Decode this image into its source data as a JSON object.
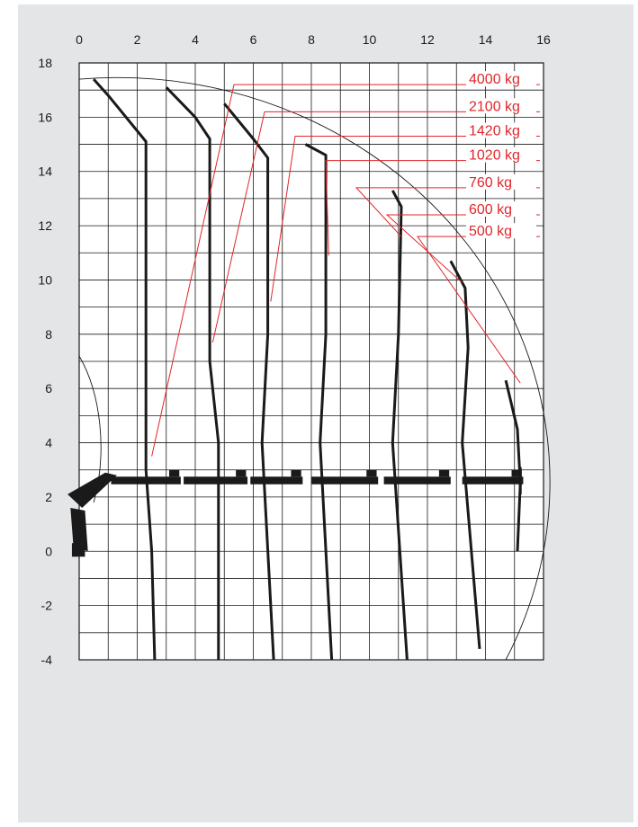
{
  "chart_data": {
    "type": "line",
    "title": "",
    "xlabel": "",
    "ylabel": "",
    "xlim": [
      0,
      16
    ],
    "ylim": [
      -4,
      18
    ],
    "grid": true,
    "x_ticks": [
      "0",
      "2",
      "4",
      "6",
      "8",
      "10",
      "12",
      "14",
      "16"
    ],
    "y_ticks": [
      "18",
      "16",
      "14",
      "12",
      "10",
      "8",
      "6",
      "4",
      "2",
      "0",
      "-2",
      "-4"
    ],
    "line_color": "#1a1a1a",
    "label_color": "#e0262b",
    "series": [
      {
        "name": "4000 kg",
        "points": [
          [
            0.5,
            17.4
          ],
          [
            1,
            16.8
          ],
          [
            2.3,
            15.1
          ],
          [
            2.3,
            3
          ],
          [
            2.5,
            0
          ],
          [
            2.6,
            -4
          ]
        ]
      },
      {
        "name": "2100 kg",
        "points": [
          [
            3,
            17.1
          ],
          [
            4,
            16
          ],
          [
            4.5,
            15.2
          ],
          [
            4.5,
            7
          ],
          [
            4.8,
            4
          ],
          [
            4.8,
            -4
          ]
        ]
      },
      {
        "name": "1420 kg",
        "points": [
          [
            5,
            16.5
          ],
          [
            6,
            15.2
          ],
          [
            6.5,
            14.5
          ],
          [
            6.5,
            8
          ],
          [
            6.3,
            4
          ],
          [
            6.7,
            -4
          ]
        ]
      },
      {
        "name": "1020 kg",
        "points": [
          [
            7.8,
            15
          ],
          [
            8.5,
            14.6
          ],
          [
            8.5,
            8
          ],
          [
            8.3,
            4
          ],
          [
            8.7,
            -4
          ]
        ]
      },
      {
        "name": "760 kg",
        "points": [
          [
            10.8,
            13.3
          ],
          [
            11.1,
            12.7
          ],
          [
            11.0,
            8
          ],
          [
            10.8,
            4
          ],
          [
            11.3,
            -4
          ]
        ]
      },
      {
        "name": "600 kg",
        "points": [
          [
            12.8,
            10.7
          ],
          [
            13.3,
            9.7
          ],
          [
            13.4,
            7.5
          ],
          [
            13.2,
            4
          ],
          [
            13.8,
            -3.6
          ]
        ]
      },
      {
        "name": "500 kg",
        "points": [
          [
            14.7,
            6.3
          ],
          [
            15.1,
            4.5
          ],
          [
            15.2,
            2.5
          ],
          [
            15.1,
            0
          ]
        ]
      }
    ],
    "labels": [
      {
        "text": "4000 kg",
        "y": 17.2,
        "target": [
          2.5,
          3.5
        ]
      },
      {
        "text": "2100 kg",
        "y": 16.2,
        "target": [
          4.6,
          7.7
        ]
      },
      {
        "text": "1420 kg",
        "y": 15.3,
        "target": [
          6.6,
          9.2
        ]
      },
      {
        "text": "1020 kg",
        "y": 14.4,
        "target": [
          8.6,
          10.9
        ]
      },
      {
        "text": "760 kg",
        "y": 13.4,
        "target": [
          11.1,
          11.6
        ]
      },
      {
        "text": "600 kg",
        "y": 12.4,
        "target": [
          13.2,
          9.9
        ]
      },
      {
        "text": "500 kg",
        "y": 11.6,
        "target": [
          15.2,
          6.2
        ]
      }
    ]
  }
}
